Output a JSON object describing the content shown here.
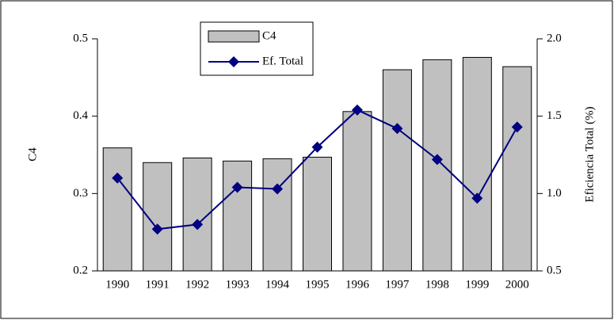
{
  "chart_data": {
    "type": "bar",
    "categories": [
      "1990",
      "1991",
      "1992",
      "1993",
      "1994",
      "1995",
      "1996",
      "1997",
      "1998",
      "1999",
      "2000"
    ],
    "series": [
      {
        "name": "C4",
        "type": "bar",
        "color": "#c0c0c0",
        "values": [
          0.359,
          0.34,
          0.346,
          0.342,
          0.345,
          0.347,
          0.406,
          0.46,
          0.473,
          0.476,
          0.464
        ]
      },
      {
        "name": "Ef. Total",
        "type": "line",
        "axis": "y2",
        "color": "#000080",
        "values": [
          1.1,
          0.77,
          0.8,
          1.04,
          1.03,
          1.3,
          1.54,
          1.42,
          1.22,
          0.97,
          1.43
        ]
      }
    ],
    "ylabel": "C4",
    "y2label": "Eficiencia Total (%)",
    "ylim": [
      0.2,
      0.5
    ],
    "yticks": [
      0.2,
      0.3,
      0.4,
      0.5
    ],
    "y2lim": [
      0.5,
      2.0
    ],
    "y2ticks": [
      0.5,
      {
        "value": 1.0,
        "label": "1.0"
      },
      1.5,
      {
        "value": 2.0,
        "label": "2.0"
      }
    ],
    "legend": "top-left"
  }
}
